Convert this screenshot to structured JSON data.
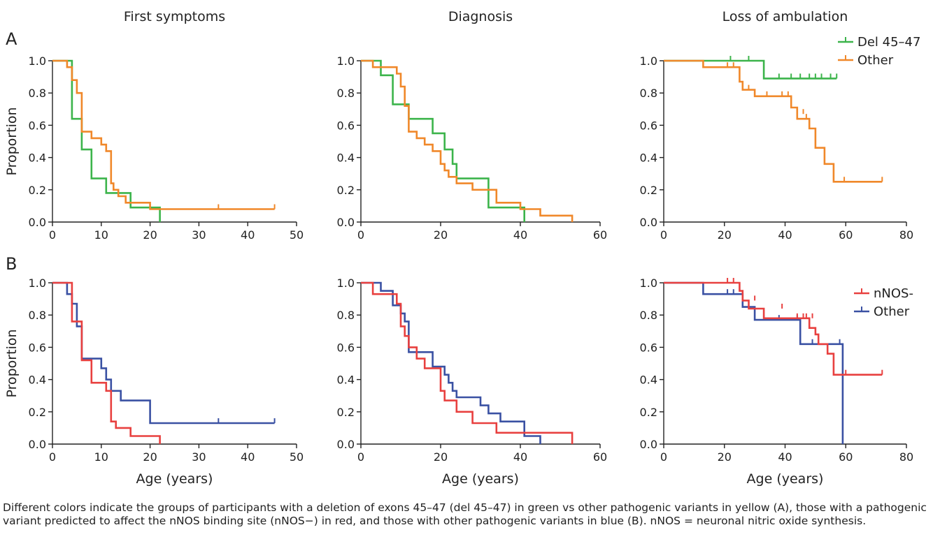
{
  "colors": {
    "del": "#3cb44b",
    "other_a": "#f0882a",
    "nnos": "#e8403f",
    "other_b": "#3a51a3",
    "axis": "#222222"
  },
  "chart_data": [
    {
      "type": "line",
      "step": true,
      "panel": "A",
      "column_title": "First symptoms",
      "xlabel": "",
      "ylabel": "Proportion",
      "xlim": [
        0,
        50
      ],
      "xticks": [
        0,
        10,
        20,
        30,
        40,
        50
      ],
      "ylim": [
        0,
        1
      ],
      "yticks": [
        "0.0",
        "0.2",
        "0.4",
        "0.6",
        "0.8",
        "1.0"
      ],
      "series": [
        {
          "color_key": "del",
          "x": [
            0,
            4,
            4,
            6,
            6,
            8,
            8,
            11,
            11,
            16,
            16,
            22,
            22
          ],
          "y": [
            1.0,
            1.0,
            0.64,
            0.64,
            0.45,
            0.45,
            0.27,
            0.27,
            0.18,
            0.18,
            0.09,
            0.09,
            0.0
          ],
          "censored": []
        },
        {
          "color_key": "other_a",
          "x": [
            0,
            3,
            3,
            4,
            4,
            5,
            5,
            6,
            6,
            8,
            8,
            10,
            10,
            11,
            11,
            12,
            12,
            12.5,
            12.5,
            13.5,
            13.5,
            15,
            15,
            20,
            20,
            45.5
          ],
          "y": [
            1.0,
            1.0,
            0.96,
            0.96,
            0.88,
            0.88,
            0.8,
            0.8,
            0.56,
            0.56,
            0.52,
            0.52,
            0.48,
            0.48,
            0.44,
            0.44,
            0.24,
            0.24,
            0.2,
            0.2,
            0.16,
            0.16,
            0.12,
            0.12,
            0.08,
            0.08
          ],
          "censored": [
            [
              34,
              0.08
            ],
            [
              45.5,
              0.08
            ]
          ]
        }
      ]
    },
    {
      "type": "line",
      "step": true,
      "panel": "A",
      "column_title": "Diagnosis",
      "xlabel": "",
      "ylabel": "",
      "xlim": [
        0,
        60
      ],
      "xticks": [
        0,
        20,
        40,
        60
      ],
      "ylim": [
        0,
        1
      ],
      "yticks": [
        "0.0",
        "0.2",
        "0.4",
        "0.6",
        "0.8",
        "1.0"
      ],
      "series": [
        {
          "color_key": "del",
          "x": [
            0,
            5,
            5,
            8,
            8,
            12,
            12,
            18,
            18,
            21,
            21,
            23,
            23,
            24,
            24,
            32,
            32,
            41,
            41
          ],
          "y": [
            1.0,
            1.0,
            0.91,
            0.91,
            0.73,
            0.73,
            0.64,
            0.64,
            0.55,
            0.55,
            0.45,
            0.45,
            0.36,
            0.36,
            0.27,
            0.27,
            0.09,
            0.09,
            0.0
          ],
          "censored": []
        },
        {
          "color_key": "other_a",
          "x": [
            0,
            3,
            3,
            9,
            9,
            10,
            10,
            11,
            11,
            12,
            12,
            14,
            14,
            16,
            16,
            18,
            18,
            20,
            20,
            21,
            21,
            22,
            22,
            24,
            24,
            28,
            28,
            34,
            34,
            40,
            40,
            45,
            45,
            53,
            53
          ],
          "y": [
            1.0,
            1.0,
            0.96,
            0.96,
            0.92,
            0.92,
            0.84,
            0.84,
            0.72,
            0.72,
            0.56,
            0.56,
            0.52,
            0.52,
            0.48,
            0.48,
            0.44,
            0.44,
            0.36,
            0.36,
            0.32,
            0.32,
            0.28,
            0.28,
            0.24,
            0.24,
            0.2,
            0.2,
            0.12,
            0.12,
            0.08,
            0.08,
            0.04,
            0.04,
            0.0
          ],
          "censored": []
        }
      ]
    },
    {
      "type": "line",
      "step": true,
      "panel": "A",
      "column_title": "Loss of ambulation",
      "xlabel": "",
      "ylabel": "",
      "xlim": [
        0,
        80
      ],
      "xticks": [
        0,
        20,
        40,
        60,
        80
      ],
      "ylim": [
        0,
        1
      ],
      "yticks": [
        "0.0",
        "0.2",
        "0.4",
        "0.6",
        "0.8",
        "1.0"
      ],
      "legend": {
        "placement": "top-right",
        "entries": [
          {
            "label": "Del 45–47",
            "color_key": "del"
          },
          {
            "label": "Other",
            "color_key": "other_a"
          }
        ]
      },
      "series": [
        {
          "color_key": "del",
          "x": [
            0,
            33,
            33,
            57
          ],
          "y": [
            1.0,
            1.0,
            0.89,
            0.89
          ],
          "censored": [
            [
              22,
              1.0
            ],
            [
              28,
              1.0
            ],
            [
              38,
              0.89
            ],
            [
              42,
              0.89
            ],
            [
              45,
              0.89
            ],
            [
              48,
              0.89
            ],
            [
              50,
              0.89
            ],
            [
              52,
              0.89
            ],
            [
              55,
              0.89
            ],
            [
              57,
              0.89
            ]
          ]
        },
        {
          "color_key": "other_a",
          "x": [
            0,
            13,
            13,
            25,
            25,
            26,
            26,
            30,
            30,
            42,
            42,
            44,
            44,
            48,
            48,
            50,
            50,
            53,
            53,
            56,
            56,
            59,
            59,
            72
          ],
          "y": [
            1.0,
            1.0,
            0.96,
            0.96,
            0.87,
            0.87,
            0.82,
            0.82,
            0.78,
            0.78,
            0.71,
            0.71,
            0.64,
            0.64,
            0.58,
            0.58,
            0.46,
            0.46,
            0.36,
            0.36,
            0.25,
            0.25,
            0.25,
            0.25
          ],
          "censored": [
            [
              21,
              0.96
            ],
            [
              23,
              0.96
            ],
            [
              28,
              0.82
            ],
            [
              34,
              0.78
            ],
            [
              39,
              0.78
            ],
            [
              41,
              0.78
            ],
            [
              46,
              0.67
            ],
            [
              47,
              0.64
            ],
            [
              59.5,
              0.25
            ],
            [
              72,
              0.25
            ]
          ]
        }
      ]
    },
    {
      "type": "line",
      "step": true,
      "panel": "B",
      "column_title": "",
      "xlabel": "Age (years)",
      "ylabel": "Proportion",
      "xlim": [
        0,
        50
      ],
      "xticks": [
        0,
        10,
        20,
        30,
        40,
        50
      ],
      "ylim": [
        0,
        1
      ],
      "yticks": [
        "0.0",
        "0.2",
        "0.4",
        "0.6",
        "0.8",
        "1.0"
      ],
      "series": [
        {
          "color_key": "other_b",
          "x": [
            0,
            3,
            3,
            4,
            4,
            5,
            5,
            6,
            6,
            10,
            10,
            11,
            11,
            12,
            12,
            14,
            14,
            20,
            20,
            45.5
          ],
          "y": [
            1.0,
            1.0,
            0.93,
            0.93,
            0.87,
            0.87,
            0.73,
            0.73,
            0.53,
            0.53,
            0.47,
            0.47,
            0.4,
            0.4,
            0.33,
            0.33,
            0.27,
            0.27,
            0.13,
            0.13
          ],
          "censored": [
            [
              34,
              0.13
            ],
            [
              45.5,
              0.13
            ]
          ]
        },
        {
          "color_key": "nnos",
          "x": [
            0,
            4,
            4,
            5,
            5,
            6,
            6,
            8,
            8,
            11,
            11,
            12,
            12,
            13,
            13,
            16,
            16,
            22,
            22
          ],
          "y": [
            1.0,
            1.0,
            0.76,
            0.76,
            0.76,
            0.76,
            0.52,
            0.52,
            0.38,
            0.38,
            0.33,
            0.33,
            0.14,
            0.14,
            0.1,
            0.1,
            0.05,
            0.05,
            0.0
          ],
          "censored": []
        }
      ]
    },
    {
      "type": "line",
      "step": true,
      "panel": "B",
      "column_title": "",
      "xlabel": "Age (years)",
      "ylabel": "",
      "xlim": [
        0,
        60
      ],
      "xticks": [
        0,
        20,
        40,
        60
      ],
      "ylim": [
        0,
        1
      ],
      "yticks": [
        "0.0",
        "0.2",
        "0.4",
        "0.6",
        "0.8",
        "1.0"
      ],
      "series": [
        {
          "color_key": "other_b",
          "x": [
            0,
            5,
            5,
            8,
            8,
            10,
            10,
            11,
            11,
            12,
            12,
            18,
            18,
            21,
            21,
            22,
            22,
            23,
            23,
            24,
            24,
            30,
            30,
            32,
            32,
            35,
            35,
            41,
            41,
            45,
            45
          ],
          "y": [
            1.0,
            1.0,
            0.95,
            0.95,
            0.86,
            0.86,
            0.81,
            0.81,
            0.76,
            0.76,
            0.57,
            0.57,
            0.48,
            0.48,
            0.43,
            0.43,
            0.38,
            0.38,
            0.33,
            0.33,
            0.29,
            0.29,
            0.24,
            0.24,
            0.19,
            0.19,
            0.14,
            0.14,
            0.05,
            0.05,
            0.0
          ],
          "censored": []
        },
        {
          "color_key": "nnos",
          "x": [
            0,
            3,
            3,
            9,
            9,
            10,
            10,
            11,
            11,
            12,
            12,
            14,
            14,
            16,
            16,
            20,
            20,
            21,
            21,
            24,
            24,
            28,
            28,
            34,
            34,
            53,
            53
          ],
          "y": [
            1.0,
            1.0,
            0.93,
            0.93,
            0.87,
            0.87,
            0.73,
            0.73,
            0.67,
            0.67,
            0.6,
            0.6,
            0.53,
            0.53,
            0.47,
            0.47,
            0.33,
            0.33,
            0.27,
            0.27,
            0.2,
            0.2,
            0.13,
            0.13,
            0.07,
            0.07,
            0.0
          ],
          "censored": []
        }
      ]
    },
    {
      "type": "line",
      "step": true,
      "panel": "B",
      "column_title": "",
      "xlabel": "Age (years)",
      "ylabel": "",
      "xlim": [
        0,
        80
      ],
      "xticks": [
        0,
        20,
        40,
        60,
        80
      ],
      "ylim": [
        0,
        1
      ],
      "yticks": [
        "0.0",
        "0.2",
        "0.4",
        "0.6",
        "0.8",
        "1.0"
      ],
      "legend": {
        "placement": "top-right",
        "entries": [
          {
            "label": "nNOS-",
            "color_key": "nnos"
          },
          {
            "label": "Other",
            "color_key": "other_b"
          }
        ]
      },
      "series": [
        {
          "color_key": "other_b",
          "x": [
            0,
            13,
            13,
            26,
            26,
            30,
            30,
            45,
            45,
            59,
            59
          ],
          "y": [
            1.0,
            1.0,
            0.93,
            0.93,
            0.85,
            0.85,
            0.77,
            0.77,
            0.62,
            0.62,
            0.0
          ],
          "censored": [
            [
              21,
              0.93
            ],
            [
              23,
              0.93
            ],
            [
              33,
              0.77
            ],
            [
              38,
              0.77
            ],
            [
              44,
              0.77
            ],
            [
              49,
              0.62
            ],
            [
              58,
              0.62
            ]
          ]
        },
        {
          "color_key": "nnos",
          "x": [
            0,
            25,
            25,
            26,
            26,
            28,
            28,
            33,
            33,
            42,
            42,
            48,
            48,
            50,
            50,
            51,
            51,
            54,
            54,
            56,
            56,
            72
          ],
          "y": [
            1.0,
            1.0,
            0.95,
            0.95,
            0.89,
            0.89,
            0.84,
            0.84,
            0.78,
            0.78,
            0.78,
            0.78,
            0.72,
            0.72,
            0.68,
            0.68,
            0.62,
            0.62,
            0.56,
            0.56,
            0.43,
            0.43
          ],
          "censored": [
            [
              21,
              1.0
            ],
            [
              23,
              1.0
            ],
            [
              30,
              0.89
            ],
            [
              39,
              0.84
            ],
            [
              44,
              0.78
            ],
            [
              46,
              0.78
            ],
            [
              47,
              0.78
            ],
            [
              49,
              0.78
            ],
            [
              60,
              0.43
            ],
            [
              72,
              0.43
            ]
          ]
        }
      ]
    }
  ],
  "figure": {
    "panel_a_letter": "A",
    "panel_b_letter": "B",
    "caption": "Different colors indicate the groups of participants with a deletion of exons 45–47 (del 45–47) in green vs other pathogenic variants in yellow (A), those with a pathogenic variant predicted to affect the nNOS binding site (nNOS−) in red, and those with other pathogenic variants in blue (B). nNOS = neuronal nitric oxide synthesis."
  }
}
